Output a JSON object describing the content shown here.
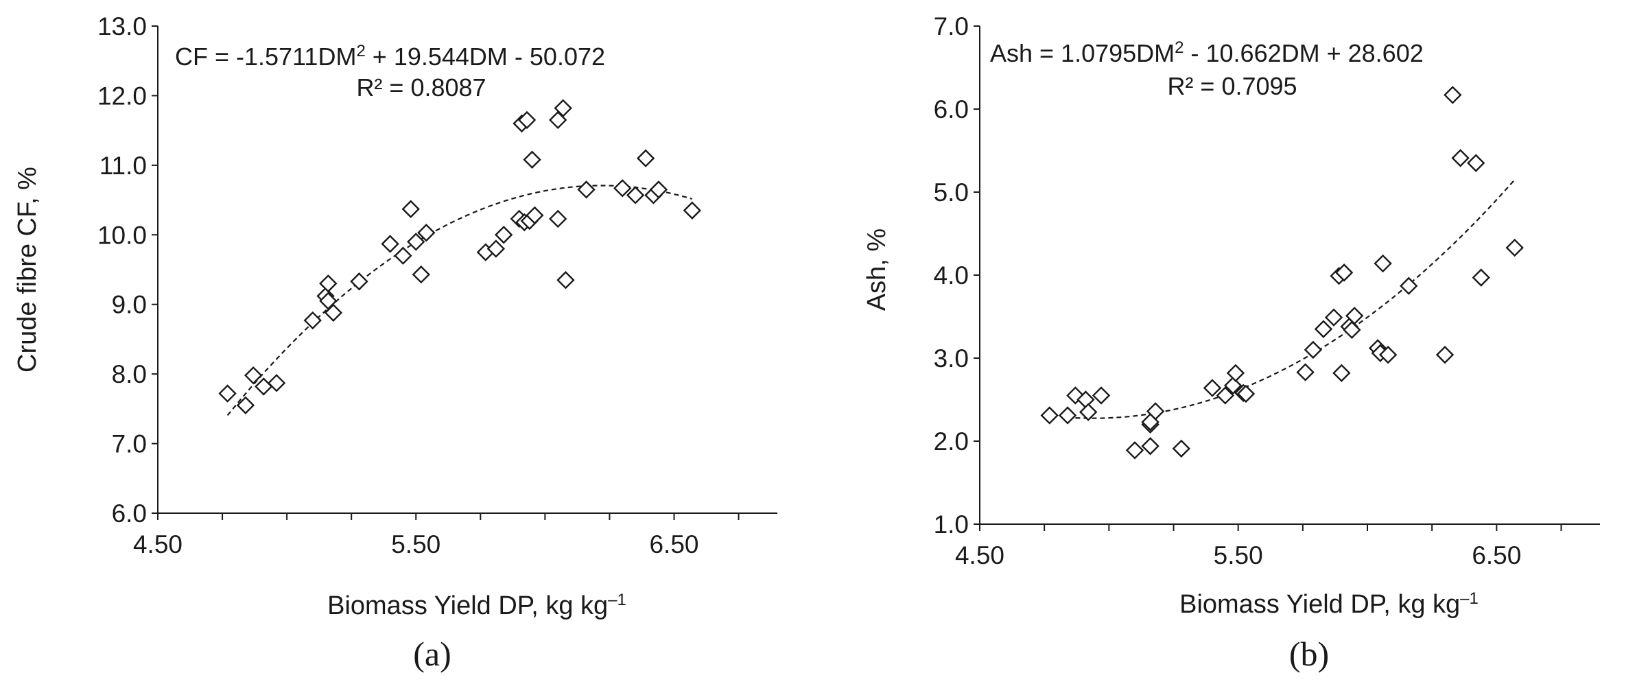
{
  "chart_data": [
    {
      "type": "scatter",
      "panel_label": "(a)",
      "xlabel": "Biomass Yield DP, kg kg–1",
      "ylabel": "Crude fibre CF, %",
      "equation_line1": "CF = -1.5711DM2 + 19.544DM - 50.072",
      "equation_line2": "R² = 0.8087",
      "xlim": [
        4.5,
        6.9
      ],
      "ylim": [
        6.0,
        13.0
      ],
      "x_ticks": [
        "4.50",
        "5.50",
        "6.50"
      ],
      "x_tick_values": [
        4.5,
        5.5,
        6.5
      ],
      "y_ticks": [
        "6.0",
        "7.0",
        "8.0",
        "9.0",
        "10.0",
        "11.0",
        "12.0",
        "13.0"
      ],
      "y_tick_values": [
        6,
        7,
        8,
        9,
        10,
        11,
        12,
        13
      ],
      "trendline": {
        "type": "polynomial",
        "coefficients": [
          -1.5711,
          19.544,
          -50.072
        ],
        "x_range": [
          4.77,
          6.57
        ]
      },
      "points": [
        [
          4.77,
          7.72
        ],
        [
          4.84,
          7.55
        ],
        [
          4.87,
          7.98
        ],
        [
          4.91,
          7.82
        ],
        [
          4.96,
          7.87
        ],
        [
          5.1,
          8.77
        ],
        [
          5.15,
          9.12
        ],
        [
          5.16,
          9.3
        ],
        [
          5.16,
          9.05
        ],
        [
          5.18,
          8.88
        ],
        [
          5.28,
          9.33
        ],
        [
          5.4,
          9.87
        ],
        [
          5.45,
          9.7
        ],
        [
          5.48,
          10.37
        ],
        [
          5.5,
          9.9
        ],
        [
          5.52,
          9.43
        ],
        [
          5.54,
          10.03
        ],
        [
          5.77,
          9.75
        ],
        [
          5.81,
          9.8
        ],
        [
          5.84,
          10.0
        ],
        [
          5.9,
          10.23
        ],
        [
          5.91,
          11.6
        ],
        [
          5.92,
          10.18
        ],
        [
          5.93,
          11.65
        ],
        [
          5.94,
          10.2
        ],
        [
          5.95,
          11.08
        ],
        [
          5.96,
          10.28
        ],
        [
          6.05,
          10.23
        ],
        [
          6.05,
          11.65
        ],
        [
          6.07,
          11.82
        ],
        [
          6.08,
          9.35
        ],
        [
          6.16,
          10.65
        ],
        [
          6.3,
          10.67
        ],
        [
          6.35,
          10.57
        ],
        [
          6.39,
          11.1
        ],
        [
          6.42,
          10.57
        ],
        [
          6.44,
          10.65
        ],
        [
          6.57,
          10.35
        ]
      ]
    },
    {
      "type": "scatter",
      "panel_label": "(b)",
      "xlabel": "Biomass Yield DP, kg kg–1",
      "ylabel": "Ash, %",
      "equation_line1": "Ash = 1.0795DM2 - 10.662DM + 28.602",
      "equation_line2": "R² = 0.7095",
      "xlim": [
        4.5,
        6.9
      ],
      "ylim": [
        1.0,
        7.0
      ],
      "x_ticks": [
        "4.50",
        "5.50",
        "6.50"
      ],
      "x_tick_values": [
        4.5,
        5.5,
        6.5
      ],
      "y_ticks": [
        "1.0",
        "2.0",
        "3.0",
        "4.0",
        "5.0",
        "6.0",
        "7.0"
      ],
      "y_tick_values": [
        1,
        2,
        3,
        4,
        5,
        6,
        7
      ],
      "trendline": {
        "type": "polynomial",
        "coefficients": [
          1.0795,
          -10.662,
          28.602
        ],
        "x_range": [
          4.87,
          6.57
        ]
      },
      "points": [
        [
          4.77,
          2.31
        ],
        [
          4.84,
          2.31
        ],
        [
          4.87,
          2.55
        ],
        [
          4.91,
          2.5
        ],
        [
          4.92,
          2.35
        ],
        [
          4.97,
          2.55
        ],
        [
          5.1,
          1.89
        ],
        [
          5.16,
          1.94
        ],
        [
          5.16,
          2.2
        ],
        [
          5.16,
          2.23
        ],
        [
          5.18,
          2.36
        ],
        [
          5.28,
          1.91
        ],
        [
          5.4,
          2.64
        ],
        [
          5.45,
          2.55
        ],
        [
          5.48,
          2.67
        ],
        [
          5.49,
          2.82
        ],
        [
          5.52,
          2.58
        ],
        [
          5.53,
          2.57
        ],
        [
          5.76,
          2.83
        ],
        [
          5.79,
          3.1
        ],
        [
          5.83,
          3.35
        ],
        [
          5.87,
          3.49
        ],
        [
          5.89,
          3.99
        ],
        [
          5.9,
          2.82
        ],
        [
          5.91,
          4.03
        ],
        [
          5.93,
          3.38
        ],
        [
          5.94,
          3.34
        ],
        [
          5.95,
          3.51
        ],
        [
          6.04,
          3.12
        ],
        [
          6.05,
          3.06
        ],
        [
          6.06,
          4.14
        ],
        [
          6.08,
          3.04
        ],
        [
          6.16,
          3.87
        ],
        [
          6.3,
          3.04
        ],
        [
          6.33,
          6.17
        ],
        [
          6.36,
          5.41
        ],
        [
          6.42,
          5.35
        ],
        [
          6.44,
          3.97
        ],
        [
          6.57,
          4.33
        ]
      ]
    }
  ]
}
